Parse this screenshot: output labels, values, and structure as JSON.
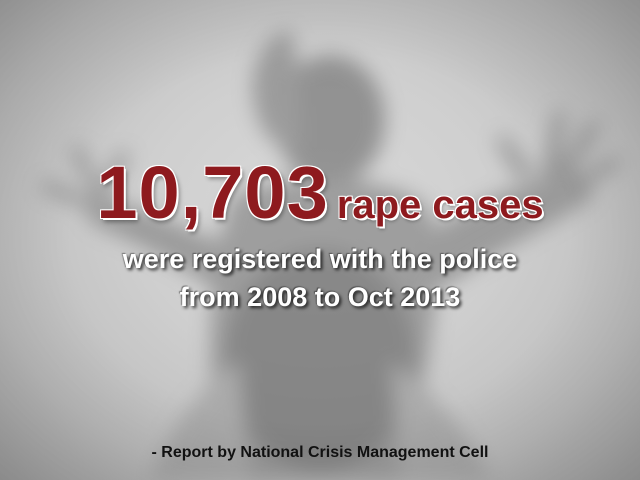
{
  "headline": {
    "number": "10,703",
    "label": "rape cases"
  },
  "subtitle": {
    "line1": "were registered with the police",
    "line2": "from 2008 to Oct 2013"
  },
  "source": "- Report by National Crisis Management Cell",
  "colors": {
    "accent_red": "#8e1a1e",
    "background_gray": "#cfcfcf",
    "subtitle_white": "#ffffff",
    "source_text": "#111111"
  }
}
